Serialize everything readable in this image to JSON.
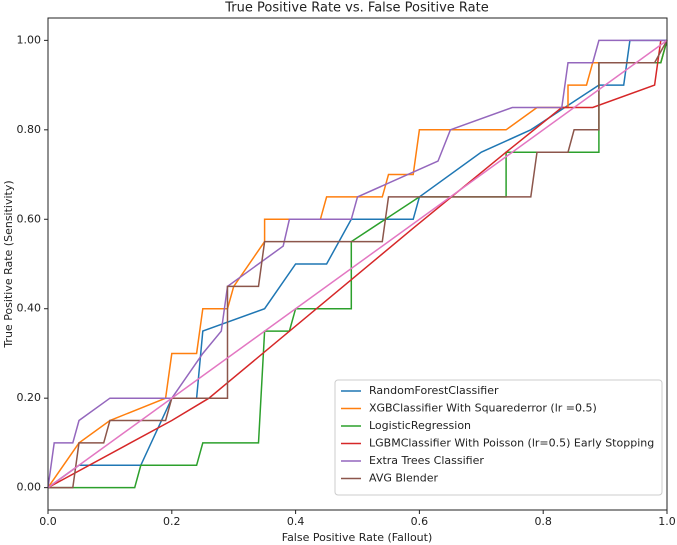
{
  "chart_data": {
    "type": "line",
    "title": "True Positive Rate vs. False Positive Rate",
    "x_label": "False Positive Rate (Fallout)",
    "y_label": "True Positive Rate (Sensitivity)",
    "xlim": [
      0,
      1
    ],
    "ylim": [
      -0.05,
      1.05
    ],
    "xticks": [
      {
        "value": 0,
        "label": "0.0"
      },
      0.2,
      0.4,
      0.6,
      0.8,
      {
        "value": 1,
        "label": "1.0"
      }
    ],
    "yticks": [
      {
        "value": 0,
        "label": "0.00"
      },
      {
        "value": 0.2,
        "label": "0.20"
      },
      {
        "value": 0.4,
        "label": "0.40"
      },
      {
        "value": 0.6,
        "label": "0.60"
      },
      {
        "value": 0.8,
        "label": "0.80"
      },
      {
        "value": 1,
        "label": "1.00"
      }
    ],
    "legend": "lower right",
    "series": [
      {
        "name": "RandomForestClassifier",
        "color": "#1f77b4",
        "x": [
          0,
          0.05,
          0.15,
          0.2,
          0.24,
          0.25,
          0.35,
          0.4,
          0.45,
          0.49,
          0.59,
          0.6,
          0.7,
          0.78,
          0.89,
          0.93,
          0.94,
          1
        ],
        "values": [
          0,
          0.05,
          0.05,
          0.2,
          0.2,
          0.35,
          0.4,
          0.5,
          0.5,
          0.6,
          0.6,
          0.65,
          0.75,
          0.8,
          0.9,
          0.9,
          1,
          1
        ]
      },
      {
        "name": "XGBClassifier With Squarederror (lr =0.5)",
        "color": "#ff7f0e",
        "x": [
          0,
          0.05,
          0.1,
          0.19,
          0.2,
          0.24,
          0.25,
          0.29,
          0.3,
          0.35,
          0.35,
          0.44,
          0.45,
          0.54,
          0.55,
          0.59,
          0.6,
          0.74,
          0.79,
          0.84,
          0.84,
          0.87,
          0.88,
          0.99,
          1
        ],
        "values": [
          0,
          0.1,
          0.15,
          0.2,
          0.3,
          0.3,
          0.4,
          0.4,
          0.45,
          0.55,
          0.6,
          0.6,
          0.65,
          0.65,
          0.7,
          0.7,
          0.8,
          0.8,
          0.85,
          0.85,
          0.9,
          0.9,
          0.95,
          0.95,
          1
        ]
      },
      {
        "name": "LogisticRegression",
        "color": "#2ca02c",
        "x": [
          0,
          0.14,
          0.15,
          0.24,
          0.25,
          0.34,
          0.35,
          0.39,
          0.4,
          0.49,
          0.49,
          0.6,
          0.74,
          0.74,
          0.89,
          0.89,
          0.99,
          1
        ],
        "values": [
          0,
          0,
          0.05,
          0.05,
          0.1,
          0.1,
          0.35,
          0.35,
          0.4,
          0.4,
          0.55,
          0.65,
          0.65,
          0.75,
          0.75,
          0.95,
          0.95,
          1
        ]
      },
      {
        "name": "LGBMClassifier With Poisson (lr=0.5) Early Stopping",
        "color": "#d62728",
        "x": [
          0,
          0.2,
          0.26,
          0.59,
          0.74,
          0.83,
          0.88,
          0.98,
          0.99
        ],
        "values": [
          0,
          0.15,
          0.2,
          0.58,
          0.75,
          0.85,
          0.85,
          0.9,
          1
        ]
      },
      {
        "name": "Extra Trees Classifier",
        "color": "#9467bd",
        "x": [
          0,
          0.01,
          0.04,
          0.05,
          0.1,
          0.2,
          0.25,
          0.28,
          0.29,
          0.38,
          0.39,
          0.49,
          0.5,
          0.63,
          0.65,
          0.75,
          0.83,
          0.84,
          0.88,
          0.89,
          1
        ],
        "values": [
          0,
          0.1,
          0.1,
          0.15,
          0.2,
          0.2,
          0.3,
          0.35,
          0.45,
          0.54,
          0.6,
          0.6,
          0.65,
          0.73,
          0.8,
          0.85,
          0.85,
          0.95,
          0.95,
          1,
          1
        ]
      },
      {
        "name": "AVG Blender",
        "color": "#8c564b",
        "x": [
          0,
          0.04,
          0.05,
          0.09,
          0.1,
          0.19,
          0.2,
          0.29,
          0.29,
          0.34,
          0.35,
          0.54,
          0.55,
          0.78,
          0.79,
          0.84,
          0.85,
          0.89,
          0.89,
          0.98,
          1
        ],
        "values": [
          0,
          0,
          0.1,
          0.1,
          0.15,
          0.15,
          0.2,
          0.2,
          0.45,
          0.45,
          0.55,
          0.55,
          0.65,
          0.65,
          0.75,
          0.75,
          0.8,
          0.8,
          0.95,
          0.95,
          1
        ]
      }
    ],
    "diagonal": {
      "color": "#e377c2",
      "x": [
        0,
        1
      ],
      "values": [
        0,
        1
      ]
    }
  }
}
